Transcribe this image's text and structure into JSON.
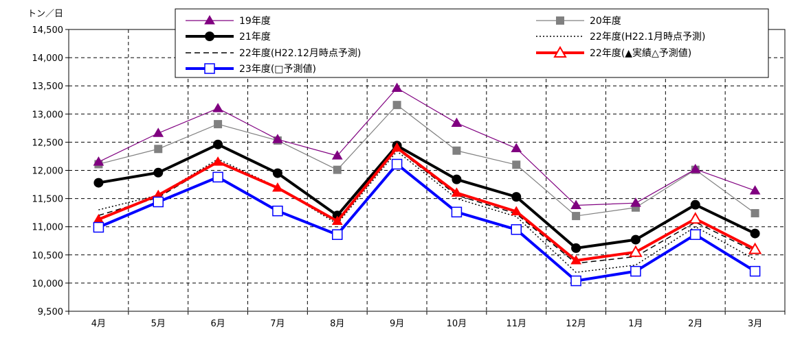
{
  "chart_data": {
    "type": "line",
    "unit_label": "トン／日",
    "categories": [
      "4月",
      "5月",
      "6月",
      "7月",
      "8月",
      "9月",
      "10月",
      "11月",
      "12月",
      "1月",
      "2月",
      "3月"
    ],
    "ylim": [
      9500,
      14500
    ],
    "yticks": [
      9500,
      10000,
      10500,
      11000,
      11500,
      12000,
      12500,
      13000,
      13500,
      14000,
      14500
    ],
    "ytick_labels": [
      "9,500",
      "10,000",
      "10,500",
      "11,000",
      "11,500",
      "12,000",
      "12,500",
      "13,000",
      "13,500",
      "14,000",
      "14,500"
    ],
    "grid": true,
    "legend_position": "top",
    "series": [
      {
        "name": "19年度",
        "color": "#800080",
        "style": "solid",
        "marker": "triangle-filled",
        "values": [
          12150,
          12660,
          13100,
          12550,
          12260,
          13460,
          12840,
          12390,
          11380,
          11420,
          12020,
          11640
        ]
      },
      {
        "name": "20年度",
        "color": "#808080",
        "style": "solid",
        "marker": "square-filled",
        "values": [
          12110,
          12380,
          12820,
          12530,
          12010,
          13160,
          12350,
          12100,
          11190,
          11340,
          12010,
          11240
        ]
      },
      {
        "name": "21年度",
        "color": "#000000",
        "style": "solid",
        "marker": "circle-filled",
        "values": [
          11780,
          11960,
          12460,
          11950,
          11200,
          12440,
          11840,
          11530,
          10620,
          10770,
          11390,
          10880
        ]
      },
      {
        "name": "22年度(H22.1月時点予測)",
        "color": "#000000",
        "style": "dotted",
        "marker": "none",
        "values": [
          11300,
          11560,
          12200,
          11700,
          11050,
          12340,
          11500,
          11180,
          10190,
          10320,
          11000,
          10420
        ]
      },
      {
        "name": "22年度(H22.12月時点予測)",
        "color": "#000000",
        "style": "dashed",
        "marker": "none",
        "values": [
          11200,
          11520,
          12150,
          11680,
          11100,
          12380,
          11560,
          11230,
          10350,
          10470,
          11080,
          10560
        ]
      },
      {
        "name": "22年度(▲実績△予測値)",
        "color": "#ff0000",
        "style": "solid",
        "marker": "triangle-mixed",
        "actual_count": 9,
        "values": [
          11130,
          11560,
          12150,
          11690,
          11100,
          12400,
          11600,
          11270,
          10400,
          10550,
          11140,
          10600
        ]
      },
      {
        "name": "23年度(□予測値)",
        "color": "#0000ff",
        "style": "solid",
        "marker": "square-open",
        "values": [
          10990,
          11440,
          11880,
          11280,
          10860,
          12110,
          11260,
          10950,
          10040,
          10210,
          10860,
          10210
        ]
      }
    ]
  }
}
